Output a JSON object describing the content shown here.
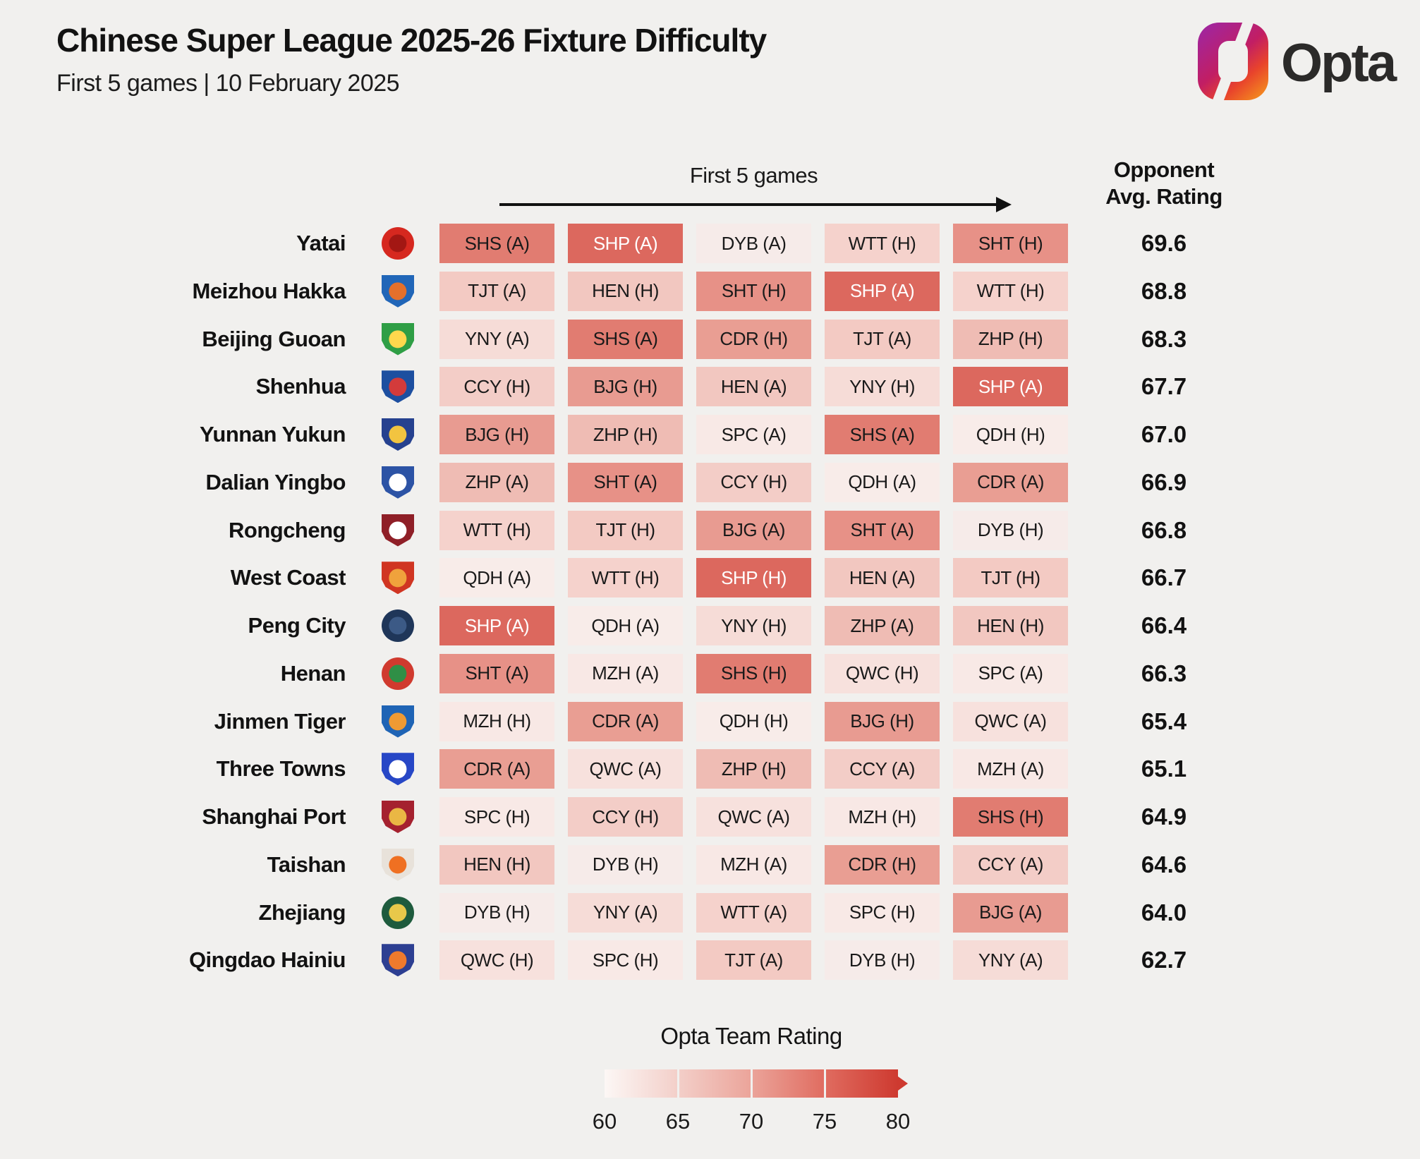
{
  "header": {
    "title": "Chinese Super League 2025-26 Fixture Difficulty",
    "subtitle": "First 5 games | 10 February 2025",
    "brand": "Opta"
  },
  "chart_data": {
    "type": "heatmap",
    "title": "Chinese Super League 2025-26 Fixture Difficulty",
    "subtitle": "First 5 games | 10 February 2025",
    "columns_label": "First 5 games",
    "value_header": [
      "Opponent",
      "Avg. Rating"
    ],
    "legend": {
      "title": "Opta Team Rating",
      "ticks": [
        "60",
        "65",
        "70",
        "75",
        "80"
      ],
      "gradient": [
        "#fcf7f5",
        "#f3cfc9",
        "#eba49a",
        "#e06c60",
        "#ce3a30"
      ]
    },
    "opponent_colors": {
      "SHP": "#dc685e",
      "SHS": "#e17c71",
      "SHT": "#e79187",
      "BJG": "#e89b91",
      "CDR": "#e99e93",
      "ZHP": "#efbcb4",
      "CCY": "#f3cdc7",
      "HEN": "#f2c7c0",
      "TJT": "#f3cac3",
      "WTT": "#f5d2cc",
      "YNY": "#f6dcd7",
      "QWC": "#f7e1dd",
      "MZH": "#f8e8e5",
      "SPC": "#f8e9e6",
      "DYB": "#f6ebe9",
      "QDH": "#f8ece9"
    },
    "white_text": [
      "SHP"
    ],
    "teams": [
      {
        "name": "Yatai",
        "rating": "69.6",
        "fixtures": [
          [
            "SHS",
            "A"
          ],
          [
            "SHP",
            "A"
          ],
          [
            "DYB",
            "A"
          ],
          [
            "WTT",
            "H"
          ],
          [
            "SHT",
            "H"
          ]
        ],
        "logo": {
          "shape": "circle",
          "c1": "#d6281f",
          "c2": "#a31713"
        }
      },
      {
        "name": "Meizhou Hakka",
        "rating": "68.8",
        "fixtures": [
          [
            "TJT",
            "A"
          ],
          [
            "HEN",
            "H"
          ],
          [
            "SHT",
            "H"
          ],
          [
            "SHP",
            "A"
          ],
          [
            "WTT",
            "H"
          ]
        ],
        "logo": {
          "shape": "shield",
          "c1": "#2166b8",
          "c2": "#e4702b"
        }
      },
      {
        "name": "Beijing Guoan",
        "rating": "68.3",
        "fixtures": [
          [
            "YNY",
            "A"
          ],
          [
            "SHS",
            "A"
          ],
          [
            "CDR",
            "H"
          ],
          [
            "TJT",
            "A"
          ],
          [
            "ZHP",
            "H"
          ]
        ],
        "logo": {
          "shape": "shield",
          "c1": "#2f9e45",
          "c2": "#ffd84d"
        }
      },
      {
        "name": "Shenhua",
        "rating": "67.7",
        "fixtures": [
          [
            "CCY",
            "H"
          ],
          [
            "BJG",
            "H"
          ],
          [
            "HEN",
            "A"
          ],
          [
            "YNY",
            "H"
          ],
          [
            "SHP",
            "A"
          ]
        ],
        "logo": {
          "shape": "shield",
          "c1": "#1d4fa0",
          "c2": "#d33b3b"
        }
      },
      {
        "name": "Yunnan Yukun",
        "rating": "67.0",
        "fixtures": [
          [
            "BJG",
            "H"
          ],
          [
            "ZHP",
            "H"
          ],
          [
            "SPC",
            "A"
          ],
          [
            "SHS",
            "A"
          ],
          [
            "QDH",
            "H"
          ]
        ],
        "logo": {
          "shape": "shield",
          "c1": "#26418f",
          "c2": "#f2c440"
        }
      },
      {
        "name": "Dalian Yingbo",
        "rating": "66.9",
        "fixtures": [
          [
            "ZHP",
            "A"
          ],
          [
            "SHT",
            "A"
          ],
          [
            "CCY",
            "H"
          ],
          [
            "QDH",
            "A"
          ],
          [
            "CDR",
            "A"
          ]
        ],
        "logo": {
          "shape": "shield",
          "c1": "#2c53a5",
          "c2": "#ffffff"
        }
      },
      {
        "name": "Rongcheng",
        "rating": "66.8",
        "fixtures": [
          [
            "WTT",
            "H"
          ],
          [
            "TJT",
            "H"
          ],
          [
            "BJG",
            "A"
          ],
          [
            "SHT",
            "A"
          ],
          [
            "DYB",
            "H"
          ]
        ],
        "logo": {
          "shape": "shield",
          "c1": "#8f1f27",
          "c2": "#ffffff"
        }
      },
      {
        "name": "West Coast",
        "rating": "66.7",
        "fixtures": [
          [
            "QDH",
            "A"
          ],
          [
            "WTT",
            "H"
          ],
          [
            "SHP",
            "H"
          ],
          [
            "HEN",
            "A"
          ],
          [
            "TJT",
            "H"
          ]
        ],
        "logo": {
          "shape": "shield",
          "c1": "#d03522",
          "c2": "#f0a23c"
        }
      },
      {
        "name": "Peng City",
        "rating": "66.4",
        "fixtures": [
          [
            "SHP",
            "A"
          ],
          [
            "QDH",
            "A"
          ],
          [
            "YNY",
            "H"
          ],
          [
            "ZHP",
            "A"
          ],
          [
            "HEN",
            "H"
          ]
        ],
        "logo": {
          "shape": "circle",
          "c1": "#1f3659",
          "c2": "#3c5a86"
        }
      },
      {
        "name": "Henan",
        "rating": "66.3",
        "fixtures": [
          [
            "SHT",
            "A"
          ],
          [
            "MZH",
            "A"
          ],
          [
            "SHS",
            "H"
          ],
          [
            "QWC",
            "H"
          ],
          [
            "SPC",
            "A"
          ]
        ],
        "logo": {
          "shape": "circle",
          "c1": "#d03a2e",
          "c2": "#2f8f46"
        }
      },
      {
        "name": "Jinmen Tiger",
        "rating": "65.4",
        "fixtures": [
          [
            "MZH",
            "H"
          ],
          [
            "CDR",
            "A"
          ],
          [
            "QDH",
            "H"
          ],
          [
            "BJG",
            "H"
          ],
          [
            "QWC",
            "A"
          ]
        ],
        "logo": {
          "shape": "shield",
          "c1": "#1f64b5",
          "c2": "#ef9a33"
        }
      },
      {
        "name": "Three Towns",
        "rating": "65.1",
        "fixtures": [
          [
            "CDR",
            "A"
          ],
          [
            "QWC",
            "A"
          ],
          [
            "ZHP",
            "H"
          ],
          [
            "CCY",
            "A"
          ],
          [
            "MZH",
            "A"
          ]
        ],
        "logo": {
          "shape": "shield",
          "c1": "#2747c6",
          "c2": "#ffffff"
        }
      },
      {
        "name": "Shanghai Port",
        "rating": "64.9",
        "fixtures": [
          [
            "SPC",
            "H"
          ],
          [
            "CCY",
            "H"
          ],
          [
            "QWC",
            "A"
          ],
          [
            "MZH",
            "H"
          ],
          [
            "SHS",
            "H"
          ]
        ],
        "logo": {
          "shape": "shield",
          "c1": "#a5212f",
          "c2": "#eab744"
        }
      },
      {
        "name": "Taishan",
        "rating": "64.6",
        "fixtures": [
          [
            "HEN",
            "H"
          ],
          [
            "DYB",
            "H"
          ],
          [
            "MZH",
            "A"
          ],
          [
            "CDR",
            "H"
          ],
          [
            "CCY",
            "A"
          ]
        ],
        "logo": {
          "shape": "shield",
          "c1": "#e8e2da",
          "c2": "#ef7022"
        }
      },
      {
        "name": "Zhejiang",
        "rating": "64.0",
        "fixtures": [
          [
            "DYB",
            "H"
          ],
          [
            "YNY",
            "A"
          ],
          [
            "WTT",
            "A"
          ],
          [
            "SPC",
            "H"
          ],
          [
            "BJG",
            "A"
          ]
        ],
        "logo": {
          "shape": "circle",
          "c1": "#1e5b3d",
          "c2": "#e8c84a"
        }
      },
      {
        "name": "Qingdao Hainiu",
        "rating": "62.7",
        "fixtures": [
          [
            "QWC",
            "H"
          ],
          [
            "SPC",
            "H"
          ],
          [
            "TJT",
            "A"
          ],
          [
            "DYB",
            "H"
          ],
          [
            "YNY",
            "A"
          ]
        ],
        "logo": {
          "shape": "shield",
          "c1": "#2d3f92",
          "c2": "#ef7a2d"
        }
      }
    ]
  }
}
